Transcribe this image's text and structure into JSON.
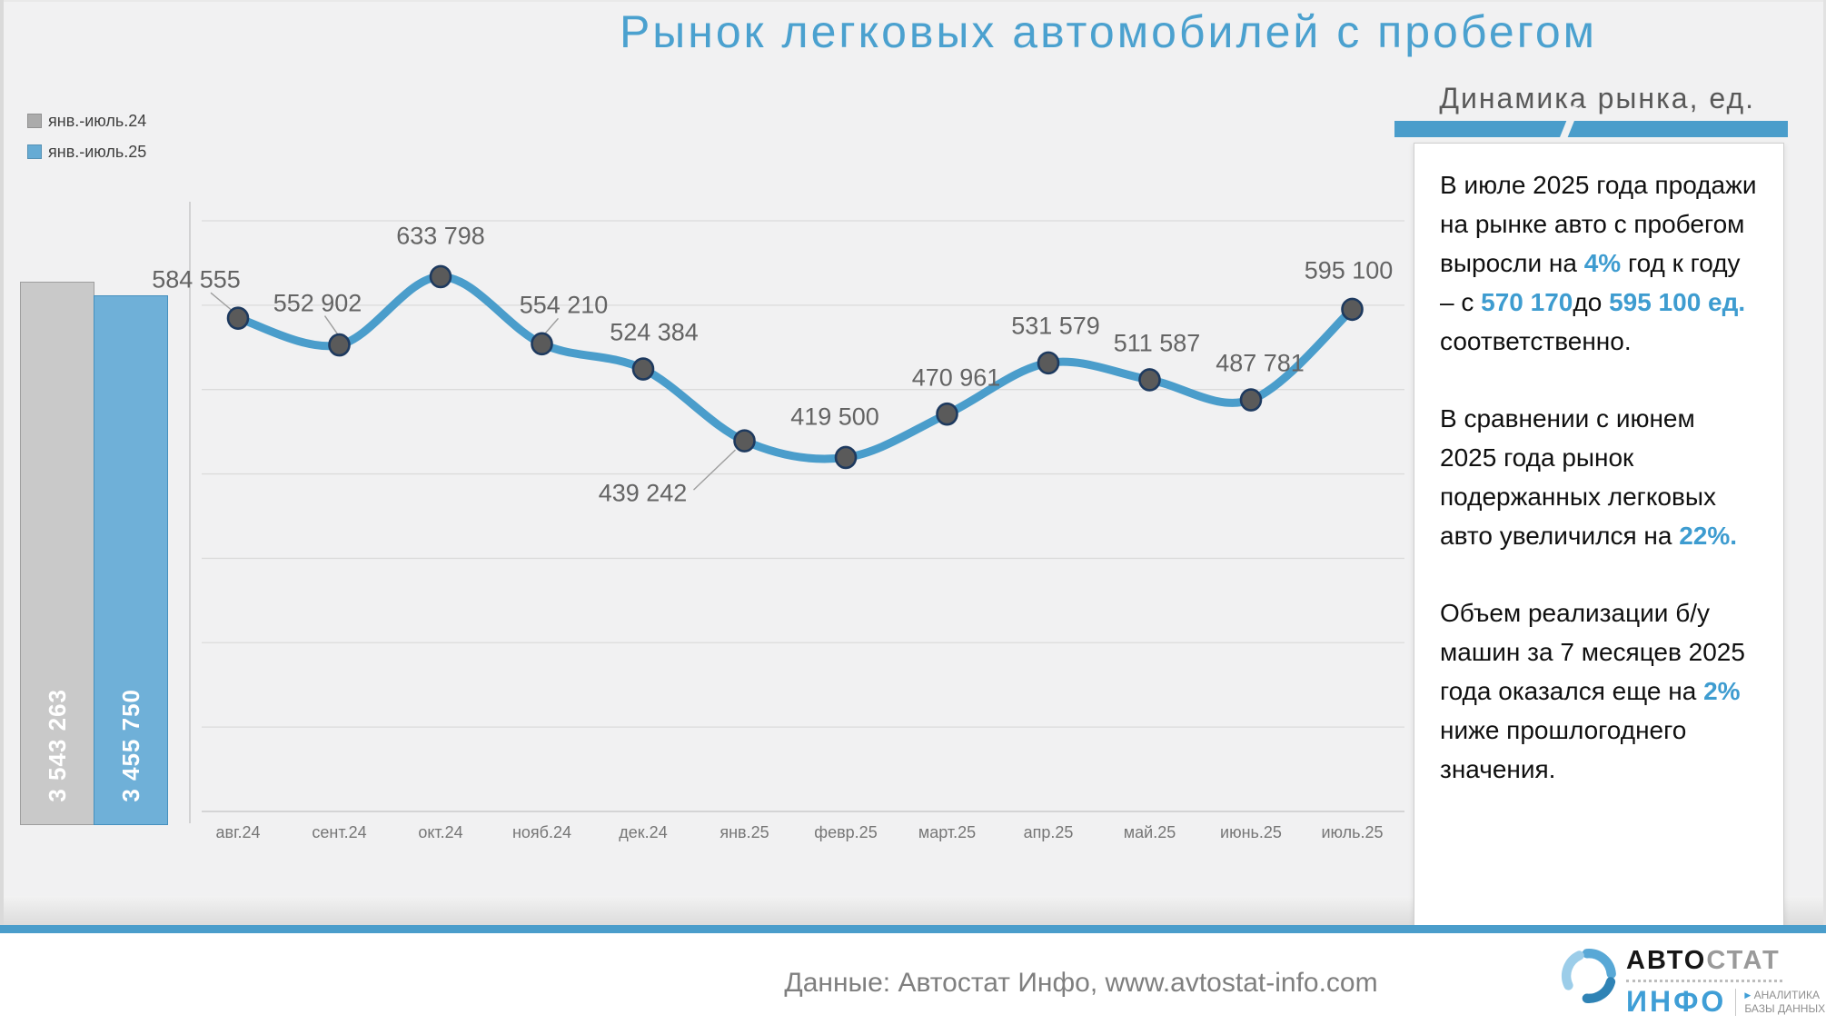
{
  "title": "Рынок легковых автомобилей с пробегом",
  "subtitle": "Динамика рынка, ед.",
  "legend": {
    "items": [
      {
        "label": "янв.-июль.24",
        "color": "#ABABAB"
      },
      {
        "label": "янв.-июль.25",
        "color": "#66ABD4"
      }
    ]
  },
  "chart_data": [
    {
      "type": "line",
      "title": "Динамика рынка, ед.",
      "categories": [
        "авг.24",
        "сент.24",
        "окт.24",
        "нояб.24",
        "дек.24",
        "янв.25",
        "февр.25",
        "март.25",
        "апр.25",
        "май.25",
        "июнь.25",
        "июль.25"
      ],
      "values": [
        584555,
        552902,
        633798,
        554210,
        524384,
        439242,
        419500,
        470961,
        531579,
        511587,
        487781,
        595100
      ],
      "data_labels": [
        "584 555",
        "552 902",
        "633 798",
        "554 210",
        "524 384",
        "439 242",
        "419 500",
        "470 961",
        "531 579",
        "511 587",
        "487 781",
        "595 100"
      ],
      "ylim": [
        0,
        700000
      ],
      "gridline_step": 100000,
      "grid": true,
      "legend_position": "none",
      "line_color": "#4A9DCB",
      "marker_color": "#5A5A5A",
      "marker_border_color": "#1E3A5F"
    },
    {
      "type": "bar",
      "title": "Итог за 7 месяцев",
      "categories": [
        "янв.-июль.24",
        "янв.-июль.25"
      ],
      "values": [
        3543263,
        3455750
      ],
      "data_labels": [
        "3 543 263",
        "3 455 750"
      ],
      "colors": [
        "#C9C9C9",
        "#6FB0D8"
      ],
      "label_position": "inside-bottom-rotated"
    }
  ],
  "annotation": {
    "paragraphs": [
      [
        {
          "t": "В июле 2025 года продажи на рынке авто с пробегом выросли на ",
          "h": false
        },
        {
          "t": "4%",
          "h": true
        },
        {
          "t": " год к году – с ",
          "h": false
        },
        {
          "t": "570 170",
          "h": true
        },
        {
          "t": "до ",
          "h": false
        },
        {
          "t": "595 100 ед.",
          "h": true
        },
        {
          "t": " соответственно.",
          "h": false
        }
      ],
      [
        {
          "t": "В сравнении с июнем 2025 года рынок подержанных легковых авто увеличился на ",
          "h": false
        },
        {
          "t": "22%.",
          "h": true
        }
      ],
      [
        {
          "t": "Объем реализации б/у машин за 7 месяцев 2025 года оказался еще на ",
          "h": false
        },
        {
          "t": "2%",
          "h": true
        },
        {
          "t": " ниже прошлогоднего значения.",
          "h": false
        }
      ]
    ]
  },
  "footer": {
    "source": "Данные: Автостат Инфо, www.avtostat-info.com"
  },
  "logo": {
    "brand_black": "АВТО",
    "brand_gray": "СТАТ",
    "sub": "ИНФО",
    "tagline1": "АНАЛИТИКА",
    "tagline2": "БАЗЫ ДАННЫХ"
  },
  "colors": {
    "accent_blue": "#4A9DCB",
    "highlight_blue": "#3E9CD0",
    "title_blue": "#4BA1CF",
    "gray_series": "#C9C9C9",
    "background": "#F1F1F2"
  }
}
